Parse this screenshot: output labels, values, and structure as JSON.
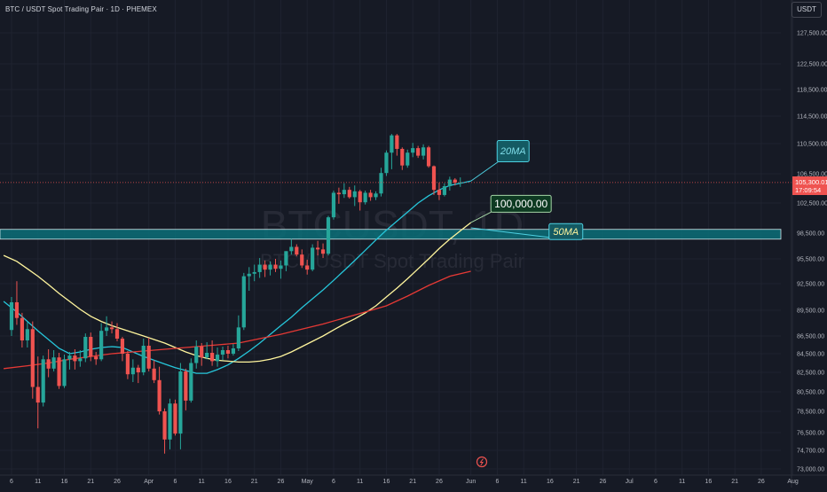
{
  "header": {
    "title": "BTC / USDT Spot Trading Pair · 1D · PHEMEX"
  },
  "price_scale": {
    "currency": "USDT",
    "current_price": "105,300.01",
    "countdown": "17:09:54"
  },
  "watermark": {
    "symbol": "BTCUSDT, 1D",
    "description": "BTC / USDT Spot Trading Pair"
  },
  "colors": {
    "background": "#161a25",
    "up": "#26a69a",
    "down": "#ef5350",
    "ma20": "#26c6da",
    "ma50": "#fff59d",
    "ma_long": "#e53935",
    "zone": "#0b6e78"
  },
  "chart_data": {
    "type": "candlestick",
    "symbol": "BTC / USDT",
    "interval": "1D",
    "y_ticks": [
      127500,
      122500,
      118500,
      114500,
      110500,
      106500,
      102500,
      98500,
      95500,
      92500,
      89500,
      86500,
      84500,
      82500,
      80500,
      78500,
      76500,
      74700,
      73000
    ],
    "y_tick_labels": [
      "127,500.00",
      "122,500.00",
      "118,500.00",
      "114,500.00",
      "110,500.00",
      "106,500.00",
      "102,500.00",
      "98,500.00",
      "95,500.00",
      "92,500.00",
      "89,500.00",
      "86,500.00",
      "84,500.00",
      "82,500.00",
      "80,500.00",
      "78,500.00",
      "76,500.00",
      "74,700.00",
      "73,000.00"
    ],
    "x_ticks": [
      {
        "day": 0,
        "label": "6"
      },
      {
        "day": 5,
        "label": "11"
      },
      {
        "day": 10,
        "label": "16"
      },
      {
        "day": 15,
        "label": "21"
      },
      {
        "day": 20,
        "label": "26"
      },
      {
        "day": 26,
        "label": "Apr"
      },
      {
        "day": 31,
        "label": "6"
      },
      {
        "day": 36,
        "label": "11"
      },
      {
        "day": 41,
        "label": "16"
      },
      {
        "day": 46,
        "label": "21"
      },
      {
        "day": 51,
        "label": "26"
      },
      {
        "day": 56,
        "label": "May"
      },
      {
        "day": 61,
        "label": "6"
      },
      {
        "day": 66,
        "label": "11"
      },
      {
        "day": 71,
        "label": "16"
      },
      {
        "day": 76,
        "label": "21"
      },
      {
        "day": 81,
        "label": "26"
      },
      {
        "day": 87,
        "label": "Jun"
      },
      {
        "day": 92,
        "label": "6"
      },
      {
        "day": 97,
        "label": "11"
      },
      {
        "day": 102,
        "label": "16"
      },
      {
        "day": 107,
        "label": "21"
      },
      {
        "day": 112,
        "label": "26"
      },
      {
        "day": 117,
        "label": "Jul"
      },
      {
        "day": 122,
        "label": "6"
      },
      {
        "day": 127,
        "label": "11"
      },
      {
        "day": 132,
        "label": "16"
      },
      {
        "day": 137,
        "label": "21"
      },
      {
        "day": 142,
        "label": "26"
      },
      {
        "day": 148,
        "label": "Aug"
      }
    ],
    "x_range": [
      -1.5,
      149
    ],
    "candles": [
      [
        87200,
        91000,
        86500,
        90400
      ],
      [
        90400,
        92800,
        87800,
        88600
      ],
      [
        88600,
        89200,
        85200,
        86000
      ],
      [
        86000,
        88100,
        85200,
        87300
      ],
      [
        87300,
        88200,
        79800,
        81000
      ],
      [
        81000,
        84200,
        76900,
        79400
      ],
      [
        79400,
        84300,
        79000,
        83900
      ],
      [
        83900,
        85000,
        82000,
        82900
      ],
      [
        82900,
        84900,
        82600,
        84100
      ],
      [
        84100,
        84600,
        80800,
        81100
      ],
      [
        81100,
        84400,
        80900,
        83900
      ],
      [
        83900,
        84700,
        82800,
        84300
      ],
      [
        84300,
        85000,
        82800,
        83700
      ],
      [
        83700,
        84900,
        83100,
        84000
      ],
      [
        84000,
        86800,
        83600,
        86400
      ],
      [
        86400,
        86900,
        83700,
        84200
      ],
      [
        84200,
        84700,
        83300,
        83900
      ],
      [
        83900,
        88000,
        83700,
        87100
      ],
      [
        87100,
        88800,
        86500,
        87500
      ],
      [
        87500,
        88200,
        86800,
        87300
      ],
      [
        87300,
        88000,
        85900,
        86200
      ],
      [
        86200,
        86400,
        83700,
        84500
      ],
      [
        84500,
        84800,
        81800,
        82300
      ],
      [
        82300,
        83900,
        81500,
        83000
      ],
      [
        83000,
        83300,
        81400,
        82500
      ],
      [
        82500,
        86200,
        82200,
        85400
      ],
      [
        85400,
        86300,
        82600,
        82900
      ],
      [
        82900,
        83800,
        81400,
        81700
      ],
      [
        81700,
        83100,
        78200,
        78500
      ],
      [
        78500,
        78800,
        74400,
        75800
      ],
      [
        75800,
        79800,
        74800,
        79300
      ],
      [
        79300,
        79700,
        76200,
        76400
      ],
      [
        76400,
        83500,
        74800,
        82600
      ],
      [
        82600,
        82900,
        78600,
        79600
      ],
      [
        79600,
        84000,
        79400,
        83500
      ],
      [
        83500,
        86000,
        82900,
        85300
      ],
      [
        85300,
        85700,
        83200,
        84100
      ],
      [
        84100,
        85800,
        83900,
        84600
      ],
      [
        84600,
        86000,
        83200,
        83700
      ],
      [
        83700,
        85200,
        83100,
        84400
      ],
      [
        84400,
        85300,
        83800,
        84900
      ],
      [
        84900,
        85400,
        84000,
        84500
      ],
      [
        84500,
        85600,
        84300,
        85100
      ],
      [
        85100,
        88900,
        84800,
        87500
      ],
      [
        87500,
        93800,
        87200,
        93400
      ],
      [
        93400,
        94500,
        91700,
        93700
      ],
      [
        93700,
        94800,
        92800,
        93900
      ],
      [
        93900,
        95600,
        93200,
        94800
      ],
      [
        94800,
        95300,
        93300,
        94200
      ],
      [
        94200,
        95200,
        93500,
        94800
      ],
      [
        94800,
        95500,
        93900,
        94300
      ],
      [
        94300,
        95300,
        93100,
        94700
      ],
      [
        94700,
        96400,
        94000,
        96400
      ],
      [
        96400,
        97800,
        96000,
        96900
      ],
      [
        96900,
        97200,
        95800,
        96000
      ],
      [
        96000,
        96600,
        94400,
        94700
      ],
      [
        94700,
        95400,
        93600,
        94200
      ],
      [
        94200,
        97200,
        94000,
        96800
      ],
      [
        96800,
        97600,
        95900,
        96600
      ],
      [
        96600,
        97300,
        95600,
        96100
      ],
      [
        96100,
        100800,
        95900,
        100600
      ],
      [
        100600,
        104200,
        100300,
        103900
      ],
      [
        103900,
        104600,
        102400,
        103700
      ],
      [
        103700,
        105200,
        103200,
        104300
      ],
      [
        104300,
        104700,
        103100,
        103300
      ],
      [
        103300,
        104900,
        102100,
        104100
      ],
      [
        104100,
        104300,
        101500,
        102600
      ],
      [
        102600,
        104200,
        102300,
        103900
      ],
      [
        103900,
        104300,
        102800,
        103300
      ],
      [
        103300,
        104100,
        102900,
        103800
      ],
      [
        103800,
        107300,
        103400,
        106600
      ],
      [
        106600,
        109600,
        106200,
        109300
      ],
      [
        109300,
        111900,
        107100,
        111700
      ],
      [
        111700,
        111900,
        108900,
        109800
      ],
      [
        109800,
        110000,
        107000,
        107600
      ],
      [
        107600,
        109700,
        107300,
        109300
      ],
      [
        109300,
        110600,
        108700,
        109900
      ],
      [
        109900,
        110200,
        108600,
        108900
      ],
      [
        108900,
        110400,
        108400,
        110000
      ],
      [
        110000,
        110200,
        107300,
        107500
      ],
      [
        107500,
        107600,
        103600,
        104300
      ],
      [
        104300,
        105300,
        102900,
        103600
      ],
      [
        103600,
        105200,
        103400,
        104800
      ],
      [
        104800,
        106100,
        104200,
        105700
      ],
      [
        105700,
        105900,
        104900,
        105300
      ],
      [
        105300,
        106000,
        104700,
        105300
      ]
    ],
    "series": [
      {
        "name": "20MA",
        "kind": "line",
        "points": [
          [
            -1.5,
            90500
          ],
          [
            1,
            89300
          ],
          [
            3,
            88200
          ],
          [
            5,
            87100
          ],
          [
            7,
            86100
          ],
          [
            9,
            85100
          ],
          [
            11,
            84500
          ],
          [
            13,
            84700
          ],
          [
            15,
            85000
          ],
          [
            17,
            85200
          ],
          [
            19,
            85300
          ],
          [
            21,
            85200
          ],
          [
            23,
            84700
          ],
          [
            25,
            84200
          ],
          [
            27,
            83800
          ],
          [
            29,
            83400
          ],
          [
            31,
            83000
          ],
          [
            33,
            82700
          ],
          [
            35,
            82400
          ],
          [
            37,
            82400
          ],
          [
            39,
            82800
          ],
          [
            41,
            83300
          ],
          [
            43,
            84000
          ],
          [
            45,
            84800
          ],
          [
            47,
            85700
          ],
          [
            49,
            86700
          ],
          [
            51,
            87700
          ],
          [
            53,
            88700
          ],
          [
            55,
            89800
          ],
          [
            57,
            90800
          ],
          [
            59,
            91800
          ],
          [
            61,
            92900
          ],
          [
            63,
            94100
          ],
          [
            65,
            95300
          ],
          [
            67,
            96500
          ],
          [
            69,
            97700
          ],
          [
            71,
            98900
          ],
          [
            73,
            100100
          ],
          [
            75,
            101300
          ],
          [
            77,
            102500
          ],
          [
            79,
            103500
          ],
          [
            81,
            104300
          ],
          [
            83,
            104900
          ],
          [
            85,
            105200
          ],
          [
            87,
            105500
          ]
        ]
      },
      {
        "name": "50MA",
        "kind": "line",
        "points": [
          [
            -1.5,
            95900
          ],
          [
            1,
            95200
          ],
          [
            3,
            94300
          ],
          [
            5,
            93400
          ],
          [
            7,
            92400
          ],
          [
            9,
            91400
          ],
          [
            11,
            90500
          ],
          [
            13,
            89600
          ],
          [
            15,
            88800
          ],
          [
            17,
            88200
          ],
          [
            19,
            87700
          ],
          [
            21,
            87300
          ],
          [
            23,
            86900
          ],
          [
            25,
            86500
          ],
          [
            27,
            86100
          ],
          [
            29,
            85700
          ],
          [
            31,
            85200
          ],
          [
            33,
            84700
          ],
          [
            35,
            84300
          ],
          [
            37,
            84000
          ],
          [
            39,
            83800
          ],
          [
            41,
            83700
          ],
          [
            43,
            83600
          ],
          [
            45,
            83600
          ],
          [
            47,
            83700
          ],
          [
            49,
            83900
          ],
          [
            51,
            84200
          ],
          [
            53,
            84700
          ],
          [
            55,
            85300
          ],
          [
            57,
            85900
          ],
          [
            59,
            86500
          ],
          [
            61,
            87200
          ],
          [
            63,
            87900
          ],
          [
            65,
            88500
          ],
          [
            67,
            89200
          ],
          [
            69,
            90000
          ],
          [
            71,
            91000
          ],
          [
            73,
            92000
          ],
          [
            75,
            93100
          ],
          [
            77,
            94300
          ],
          [
            79,
            95500
          ],
          [
            81,
            96700
          ],
          [
            83,
            97800
          ],
          [
            85,
            98800
          ],
          [
            87,
            99900
          ]
        ]
      },
      {
        "name": "",
        "kind": "line",
        "points": [
          [
            -1.5,
            82900
          ],
          [
            3,
            83200
          ],
          [
            7,
            83500
          ],
          [
            11,
            83900
          ],
          [
            15,
            84200
          ],
          [
            19,
            84500
          ],
          [
            23,
            84700
          ],
          [
            27,
            84900
          ],
          [
            31,
            85100
          ],
          [
            35,
            85300
          ],
          [
            39,
            85500
          ],
          [
            43,
            85700
          ],
          [
            47,
            86200
          ],
          [
            51,
            86700
          ],
          [
            55,
            87300
          ],
          [
            59,
            87900
          ],
          [
            63,
            88600
          ],
          [
            67,
            89300
          ],
          [
            71,
            90000
          ],
          [
            75,
            91100
          ],
          [
            79,
            92300
          ],
          [
            83,
            93400
          ],
          [
            87,
            94000
          ]
        ]
      }
    ],
    "zone": {
      "low": 97800,
      "high": 99000
    },
    "current_price": 105300.01,
    "annotations": [
      {
        "text": "20MA",
        "x": 87,
        "y": 105500,
        "anchor_x": 95,
        "anchor_y": 109500,
        "style": "ma20"
      },
      {
        "text": "100,000.00",
        "x": 87,
        "y": 99900,
        "anchor_x": 96.5,
        "anchor_y": 102400,
        "style": "price"
      },
      {
        "text": "50MA",
        "x": 87,
        "y": 99200,
        "anchor_x": 105,
        "anchor_y": 98700,
        "style": "ma50"
      }
    ]
  }
}
